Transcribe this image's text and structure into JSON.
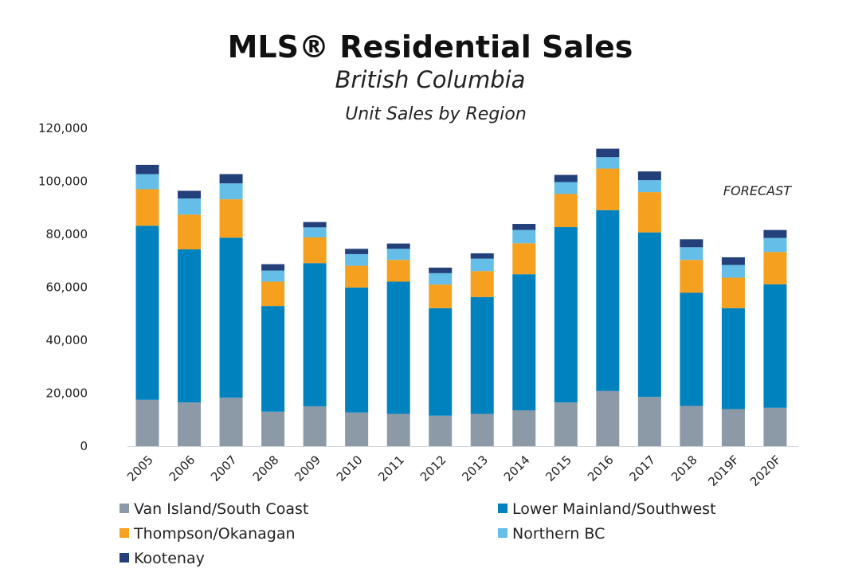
{
  "chart_data": {
    "type": "bar",
    "stacked": true,
    "title": "MLS® Residential Sales",
    "subtitle": "British Columbia",
    "subtitle2": "Unit Sales by Region",
    "xlabel": "",
    "ylabel": "",
    "ylim": [
      0,
      120000
    ],
    "yticks": [
      0,
      20000,
      40000,
      60000,
      80000,
      100000,
      120000
    ],
    "ytick_labels": [
      "0",
      "20,000",
      "40,000",
      "60,000",
      "80,000",
      "100,000",
      "120,000"
    ],
    "grid": false,
    "legend_placement": "bottom",
    "annotation": "FORECAST",
    "categories": [
      "2005",
      "2006",
      "2007",
      "2008",
      "2009",
      "2010",
      "2011",
      "2012",
      "2013",
      "2014",
      "2015",
      "2016",
      "2017",
      "2018",
      "2019F",
      "2020F"
    ],
    "series": [
      {
        "name": "Van Island/South Coast",
        "color": "#8c9aa8",
        "values": [
          17500,
          16500,
          18300,
          13000,
          15000,
          12700,
          12200,
          11500,
          12200,
          13500,
          16500,
          20800,
          18600,
          15200,
          14000,
          14500
        ]
      },
      {
        "name": "Lower Mainland/Southwest",
        "color": "#0082be",
        "values": [
          65700,
          57800,
          60400,
          39900,
          54100,
          47200,
          49900,
          40600,
          44100,
          51400,
          66200,
          68300,
          62100,
          42700,
          38100,
          46600
        ]
      },
      {
        "name": "Thompson/Okanagan",
        "color": "#f5a01e",
        "values": [
          13800,
          13100,
          14500,
          9200,
          9700,
          8200,
          8200,
          8900,
          9800,
          11700,
          12500,
          15700,
          15200,
          12400,
          11500,
          12200
        ]
      },
      {
        "name": "Northern BC",
        "color": "#64bee8",
        "values": [
          5700,
          6100,
          6000,
          4200,
          3800,
          4400,
          4200,
          4300,
          4700,
          5000,
          4500,
          4300,
          4500,
          4800,
          4800,
          5300
        ]
      },
      {
        "name": "Kootenay",
        "color": "#23407a",
        "values": [
          3500,
          2900,
          3500,
          2400,
          2000,
          2000,
          2000,
          2100,
          2000,
          2300,
          2700,
          3200,
          3300,
          3000,
          2900,
          3000
        ]
      }
    ]
  }
}
